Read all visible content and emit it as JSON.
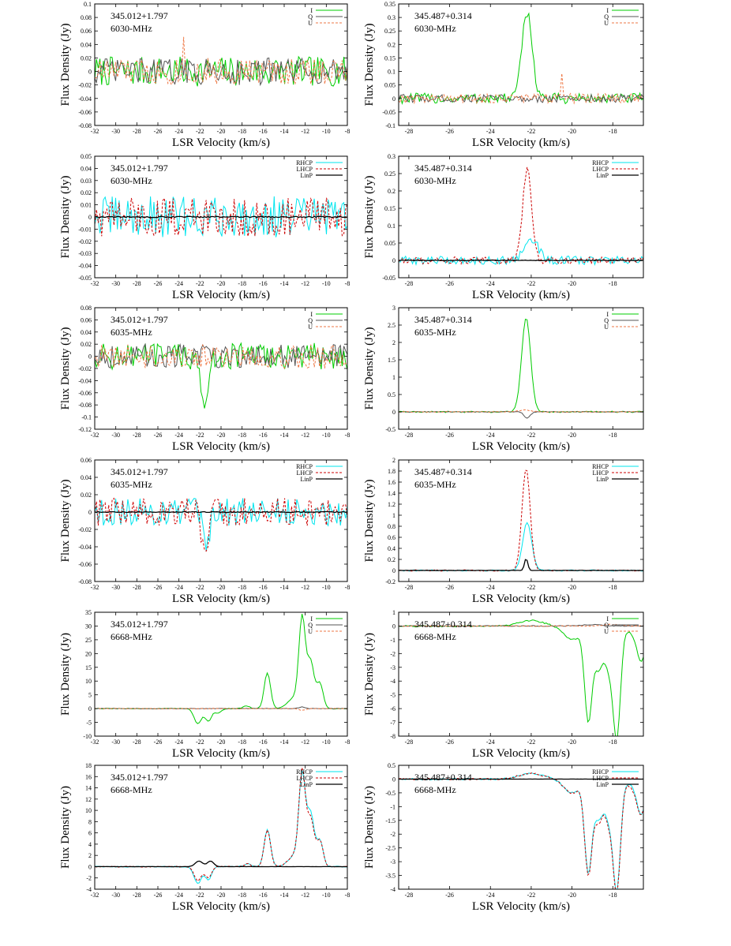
{
  "chart_data": [
    {
      "type": "line",
      "source": "345.012+1.797",
      "frequency": "6030-MHz",
      "xlabel": "LSR Velocity (km/s)",
      "ylabel": "Flux Density (Jy)",
      "xlim": [
        -32,
        -8
      ],
      "xticks": [
        -32,
        -30,
        -28,
        -26,
        -24,
        -22,
        -20,
        -18,
        -16,
        -14,
        -12,
        -10,
        -8
      ],
      "ylim": [
        -0.08,
        0.1
      ],
      "yticks": [
        -0.08,
        -0.06,
        -0.04,
        -0.02,
        0,
        0.02,
        0.04,
        0.06,
        0.08,
        0.1
      ],
      "legend": "top-right",
      "series": [
        {
          "name": "I",
          "color": "#00cc00",
          "dash": "",
          "features": [],
          "noise": 0.022
        },
        {
          "name": "Q",
          "color": "#555555",
          "dash": "",
          "features": [],
          "noise": 0.02
        },
        {
          "name": "U",
          "color": "#ee7744",
          "dash": "3,2",
          "features": [
            [
              -23.6,
              0.085,
              0.04
            ]
          ],
          "noise": 0.02
        }
      ]
    },
    {
      "type": "line",
      "source": "345.487+0.314",
      "frequency": "6030-MHz",
      "xlabel": "LSR Velocity (km/s)",
      "ylabel": "Flux Density (Jy)",
      "xlim": [
        -28.5,
        -16.5
      ],
      "xticks": [
        -28,
        -26,
        -24,
        -22,
        -20,
        -18
      ],
      "ylim": [
        -0.1,
        0.35
      ],
      "yticks": [
        -0.1,
        -0.05,
        0,
        0.05,
        0.1,
        0.15,
        0.2,
        0.25,
        0.3,
        0.35
      ],
      "legend": "top-right",
      "series": [
        {
          "name": "I",
          "color": "#00cc00",
          "dash": "",
          "features": [
            [
              -22.2,
              0.32,
              0.25
            ]
          ],
          "noise": 0.02
        },
        {
          "name": "Q",
          "color": "#555555",
          "dash": "",
          "features": [],
          "noise": 0.015
        },
        {
          "name": "U",
          "color": "#ee7744",
          "dash": "3,2",
          "features": [
            [
              -20.5,
              0.08,
              0.06
            ]
          ],
          "noise": 0.018
        }
      ]
    },
    {
      "type": "line",
      "source": "345.012+1.797",
      "frequency": "6030-MHz",
      "xlabel": "LSR Velocity (km/s)",
      "ylabel": "Flux Density (Jy)",
      "xlim": [
        -32,
        -8
      ],
      "xticks": [
        -32,
        -30,
        -28,
        -26,
        -24,
        -22,
        -20,
        -18,
        -16,
        -14,
        -12,
        -10,
        -8
      ],
      "ylim": [
        -0.05,
        0.05
      ],
      "yticks": [
        -0.05,
        -0.04,
        -0.03,
        -0.02,
        -0.01,
        0,
        0.01,
        0.02,
        0.03,
        0.04,
        0.05
      ],
      "legend": "top-right",
      "series": [
        {
          "name": "RHCP",
          "color": "#00e5ee",
          "dash": "",
          "features": [],
          "noise": 0.017
        },
        {
          "name": "LHCP",
          "color": "#cc0000",
          "dash": "3,2",
          "features": [],
          "noise": 0.016
        },
        {
          "name": "LinP",
          "color": "#000000",
          "dash": "",
          "features": [],
          "noise": 0.0005
        }
      ]
    },
    {
      "type": "line",
      "source": "345.487+0.314",
      "frequency": "6030-MHz",
      "xlabel": "LSR Velocity (km/s)",
      "ylabel": "Flux Density (Jy)",
      "xlim": [
        -28.5,
        -16.5
      ],
      "xticks": [
        -28,
        -26,
        -24,
        -22,
        -20,
        -18
      ],
      "ylim": [
        -0.05,
        0.3
      ],
      "yticks": [
        -0.05,
        0,
        0.05,
        0.1,
        0.15,
        0.2,
        0.25,
        0.3
      ],
      "legend": "top-right",
      "series": [
        {
          "name": "RHCP",
          "color": "#00e5ee",
          "dash": "",
          "features": [
            [
              -22.0,
              0.06,
              0.35
            ]
          ],
          "noise": 0.012
        },
        {
          "name": "LHCP",
          "color": "#cc0000",
          "dash": "3,2",
          "features": [
            [
              -22.2,
              0.26,
              0.22
            ]
          ],
          "noise": 0.01
        },
        {
          "name": "LinP",
          "color": "#000000",
          "dash": "",
          "features": [],
          "noise": 0.001
        }
      ]
    },
    {
      "type": "line",
      "source": "345.012+1.797",
      "frequency": "6035-MHz",
      "xlabel": "LSR Velocity (km/s)",
      "ylabel": "Flux Density (Jy)",
      "xlim": [
        -32,
        -8
      ],
      "xticks": [
        -32,
        -30,
        -28,
        -26,
        -24,
        -22,
        -20,
        -18,
        -16,
        -14,
        -12,
        -10,
        -8
      ],
      "ylim": [
        -0.12,
        0.08
      ],
      "yticks": [
        -0.12,
        -0.1,
        -0.08,
        -0.06,
        -0.04,
        -0.02,
        0,
        0.02,
        0.04,
        0.06,
        0.08
      ],
      "legend": "top-right",
      "series": [
        {
          "name": "I",
          "color": "#00cc00",
          "dash": "",
          "features": [
            [
              -21.6,
              -0.1,
              0.3
            ]
          ],
          "noise": 0.022
        },
        {
          "name": "Q",
          "color": "#555555",
          "dash": "",
          "features": [],
          "noise": 0.02
        },
        {
          "name": "U",
          "color": "#ee7744",
          "dash": "3,2",
          "features": [],
          "noise": 0.02
        }
      ]
    },
    {
      "type": "line",
      "source": "345.487+0.314",
      "frequency": "6035-MHz",
      "xlabel": "LSR Velocity (km/s)",
      "ylabel": "Flux Density (Jy)",
      "xlim": [
        -28.5,
        -16.5
      ],
      "xticks": [
        -28,
        -26,
        -24,
        -22,
        -20,
        -18
      ],
      "ylim": [
        -0.5,
        3
      ],
      "yticks": [
        -0.5,
        0,
        0.5,
        1,
        1.5,
        2,
        2.5,
        3
      ],
      "legend": "top-right",
      "series": [
        {
          "name": "I",
          "color": "#00cc00",
          "dash": "",
          "features": [
            [
              -22.25,
              2.7,
              0.22
            ]
          ],
          "noise": 0.02
        },
        {
          "name": "Q",
          "color": "#555555",
          "dash": "",
          "features": [
            [
              -22.2,
              -0.18,
              0.15
            ]
          ],
          "noise": 0.01
        },
        {
          "name": "U",
          "color": "#ee7744",
          "dash": "3,2",
          "features": [
            [
              -22.3,
              0.05,
              0.3
            ]
          ],
          "noise": 0.01
        }
      ]
    },
    {
      "type": "line",
      "source": "345.012+1.797",
      "frequency": "6035-MHz",
      "xlabel": "LSR Velocity (km/s)",
      "ylabel": "Flux Density (Jy)",
      "xlim": [
        -32,
        -8
      ],
      "xticks": [
        -32,
        -30,
        -28,
        -26,
        -24,
        -22,
        -20,
        -18,
        -16,
        -14,
        -12,
        -10,
        -8
      ],
      "ylim": [
        -0.08,
        0.06
      ],
      "yticks": [
        -0.08,
        -0.06,
        -0.04,
        -0.02,
        0,
        0.02,
        0.04,
        0.06
      ],
      "legend": "top-right",
      "series": [
        {
          "name": "RHCP",
          "color": "#00e5ee",
          "dash": "",
          "features": [
            [
              -21.4,
              -0.05,
              0.3
            ]
          ],
          "noise": 0.016
        },
        {
          "name": "LHCP",
          "color": "#cc0000",
          "dash": "3,2",
          "features": [
            [
              -21.5,
              -0.06,
              0.3
            ]
          ],
          "noise": 0.016
        },
        {
          "name": "LinP",
          "color": "#000000",
          "dash": "",
          "features": [],
          "noise": 0.0005
        }
      ]
    },
    {
      "type": "line",
      "source": "345.487+0.314",
      "frequency": "6035-MHz",
      "xlabel": "LSR Velocity (km/s)",
      "ylabel": "Flux Density (Jy)",
      "xlim": [
        -28.5,
        -16.5
      ],
      "xticks": [
        -28,
        -26,
        -24,
        -22,
        -20,
        -18
      ],
      "ylim": [
        -0.2,
        2
      ],
      "yticks": [
        -0.2,
        0,
        0.2,
        0.4,
        0.6,
        0.8,
        1,
        1.2,
        1.4,
        1.6,
        1.8,
        2
      ],
      "legend": "top-right",
      "series": [
        {
          "name": "RHCP",
          "color": "#00e5ee",
          "dash": "",
          "features": [
            [
              -22.2,
              0.87,
              0.22
            ]
          ],
          "noise": 0.012
        },
        {
          "name": "LHCP",
          "color": "#cc0000",
          "dash": "3,2",
          "features": [
            [
              -22.25,
              1.85,
              0.2
            ]
          ],
          "noise": 0.012
        },
        {
          "name": "LinP",
          "color": "#000000",
          "dash": "",
          "features": [
            [
              -22.25,
              0.22,
              0.08
            ]
          ],
          "noise": 0.002
        }
      ]
    },
    {
      "type": "line",
      "source": "345.012+1.797",
      "frequency": "6668-MHz",
      "xlabel": "LSR Velocity (km/s)",
      "ylabel": "Flux Density (Jy)",
      "xlim": [
        -32,
        -8
      ],
      "xticks": [
        -32,
        -30,
        -28,
        -26,
        -24,
        -22,
        -20,
        -18,
        -16,
        -14,
        -12,
        -10,
        -8
      ],
      "ylim": [
        -10,
        35
      ],
      "yticks": [
        -10,
        -5,
        0,
        5,
        10,
        15,
        20,
        25,
        30,
        35
      ],
      "legend": "top-right",
      "series": [
        {
          "name": "I",
          "color": "#00cc00",
          "dash": "",
          "features": [
            [
              -22.2,
              -5.5,
              0.35
            ],
            [
              -21.2,
              -4.5,
              0.3
            ],
            [
              -20.3,
              -1.5,
              0.3
            ],
            [
              -17.6,
              1,
              0.3
            ],
            [
              -15.6,
              13,
              0.3
            ],
            [
              -12.3,
              31,
              0.3
            ],
            [
              -11.5,
              17,
              0.35
            ],
            [
              -10.6,
              9,
              0.3
            ],
            [
              -13,
              4,
              0.6
            ]
          ],
          "noise": 0.15
        },
        {
          "name": "Q",
          "color": "#555555",
          "dash": "",
          "features": [
            [
              -12.3,
              0.6,
              0.3
            ]
          ],
          "noise": 0.1
        },
        {
          "name": "U",
          "color": "#ee7744",
          "dash": "3,2",
          "features": [
            [
              -12.3,
              -0.6,
              0.3
            ]
          ],
          "noise": 0.1
        }
      ]
    },
    {
      "type": "line",
      "source": "345.487+0.314",
      "frequency": "6668-MHz",
      "xlabel": "LSR Velocity (km/s)",
      "ylabel": "Flux Density (Jy)",
      "xlim": [
        -28.5,
        -16.5
      ],
      "xticks": [
        -28,
        -26,
        -24,
        -22,
        -20,
        -18
      ],
      "ylim": [
        -8,
        1
      ],
      "yticks": [
        -8,
        -7,
        -6,
        -5,
        -4,
        -3,
        -2,
        -1,
        0,
        1
      ],
      "legend": "top-right",
      "series": [
        {
          "name": "I",
          "color": "#00cc00",
          "dash": "",
          "features": [
            [
              -19.2,
              -6.8,
              0.18
            ],
            [
              -18.7,
              -3,
              0.2
            ],
            [
              -18.2,
              -2.8,
              0.2
            ],
            [
              -17.8,
              -7.9,
              0.18
            ],
            [
              -20,
              -1,
              0.4
            ],
            [
              -17,
              -0.5,
              0.3
            ],
            [
              -16.6,
              -2.4,
              0.2
            ],
            [
              -22,
              0.4,
              0.6
            ]
          ],
          "noise": 0.05
        },
        {
          "name": "Q",
          "color": "#555555",
          "dash": "",
          "features": [
            [
              -19,
              0.1,
              0.5
            ]
          ],
          "noise": 0.03
        },
        {
          "name": "U",
          "color": "#ee7744",
          "dash": "3,2",
          "features": [
            [
              -18,
              0.1,
              0.5
            ]
          ],
          "noise": 0.03
        }
      ]
    },
    {
      "type": "line",
      "source": "345.012+1.797",
      "frequency": "6668-MHz",
      "xlabel": "LSR Velocity (km/s)",
      "ylabel": "Flux Density (Jy)",
      "xlim": [
        -32,
        -8
      ],
      "xticks": [
        -32,
        -30,
        -28,
        -26,
        -24,
        -22,
        -20,
        -18,
        -16,
        -14,
        -12,
        -10,
        -8
      ],
      "ylim": [
        -4,
        18
      ],
      "yticks": [
        -4,
        -2,
        0,
        2,
        4,
        6,
        8,
        10,
        12,
        14,
        16,
        18
      ],
      "legend": "top-right",
      "series": [
        {
          "name": "RHCP",
          "color": "#00e5ee",
          "dash": "",
          "features": [
            [
              -22.2,
              -3,
              0.35
            ],
            [
              -21.2,
              -2.3,
              0.3
            ],
            [
              -17.5,
              0.5,
              0.3
            ],
            [
              -15.6,
              6.7,
              0.3
            ],
            [
              -12.3,
              15.5,
              0.3
            ],
            [
              -11.5,
              9.5,
              0.35
            ],
            [
              -10.6,
              4.5,
              0.3
            ],
            [
              -13,
              2,
              0.6
            ]
          ],
          "noise": 0.08
        },
        {
          "name": "LHCP",
          "color": "#cc0000",
          "dash": "3,2",
          "features": [
            [
              -22.2,
              -2.5,
              0.35
            ],
            [
              -21.2,
              -2,
              0.3
            ],
            [
              -17.5,
              0.5,
              0.3
            ],
            [
              -15.6,
              6.5,
              0.3
            ],
            [
              -12.3,
              16,
              0.3
            ],
            [
              -11.5,
              8.5,
              0.35
            ],
            [
              -10.6,
              4.5,
              0.3
            ],
            [
              -13,
              2,
              0.6
            ]
          ],
          "noise": 0.08
        },
        {
          "name": "LinP",
          "color": "#000000",
          "dash": "",
          "features": [
            [
              -22.1,
              1,
              0.35
            ],
            [
              -21.0,
              1,
              0.3
            ]
          ],
          "noise": 0.01
        }
      ]
    },
    {
      "type": "line",
      "source": "345.487+0.314",
      "frequency": "6668-MHz",
      "xlabel": "LSR Velocity (km/s)",
      "ylabel": "Flux Density (Jy)",
      "xlim": [
        -28.5,
        -16.5
      ],
      "xticks": [
        -28,
        -26,
        -24,
        -22,
        -20,
        -18
      ],
      "ylim": [
        -4,
        0.5
      ],
      "yticks": [
        -4,
        -3.5,
        -3,
        -2.5,
        -2,
        -1.5,
        -1,
        -0.5,
        0,
        0.5
      ],
      "legend": "top-right",
      "series": [
        {
          "name": "RHCP",
          "color": "#00e5ee",
          "dash": "",
          "features": [
            [
              -19.2,
              -3.3,
              0.18
            ],
            [
              -18.7,
              -1.4,
              0.2
            ],
            [
              -18.2,
              -1.3,
              0.2
            ],
            [
              -17.8,
              -3.9,
              0.18
            ],
            [
              -20,
              -0.5,
              0.4
            ],
            [
              -17,
              -0.2,
              0.3
            ],
            [
              -16.6,
              -1.2,
              0.2
            ],
            [
              -22,
              0.2,
              0.6
            ]
          ],
          "noise": 0.03
        },
        {
          "name": "LHCP",
          "color": "#cc0000",
          "dash": "3,2",
          "features": [
            [
              -19.2,
              -3.4,
              0.18
            ],
            [
              -18.7,
              -1.5,
              0.2
            ],
            [
              -18.2,
              -1.4,
              0.2
            ],
            [
              -17.8,
              -4,
              0.18
            ],
            [
              -20,
              -0.5,
              0.4
            ],
            [
              -17,
              -0.3,
              0.3
            ],
            [
              -16.6,
              -1.2,
              0.2
            ],
            [
              -22,
              0.2,
              0.6
            ]
          ],
          "noise": 0.03
        },
        {
          "name": "LinP",
          "color": "#000000",
          "dash": "",
          "features": [],
          "noise": 0.002
        }
      ]
    }
  ]
}
